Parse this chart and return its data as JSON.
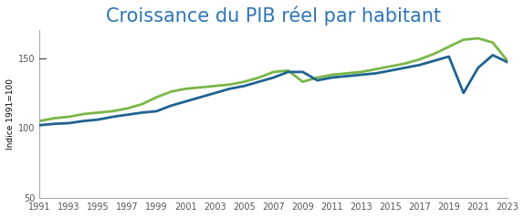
{
  "title": "Croissance du PIB réel par habitant",
  "ylabel": "Indice 1991=100",
  "xlim": [
    1991,
    2023
  ],
  "ylim": [
    50,
    170
  ],
  "yticks": [
    50,
    100,
    150
  ],
  "xticks": [
    1991,
    1993,
    1995,
    1997,
    1999,
    2001,
    2003,
    2005,
    2007,
    2009,
    2011,
    2013,
    2015,
    2017,
    2019,
    2021,
    2023
  ],
  "title_color": "#2e75b6",
  "title_fontsize": 15,
  "color_blue": "#1f6391",
  "color_green": "#7ab648",
  "blue_data": {
    "years": [
      1991,
      1992,
      1993,
      1994,
      1995,
      1996,
      1997,
      1998,
      1999,
      2000,
      2001,
      2002,
      2003,
      2004,
      2005,
      2006,
      2007,
      2008,
      2009,
      2010,
      2011,
      2012,
      2013,
      2014,
      2015,
      2016,
      2017,
      2018,
      2019,
      2020,
      2021,
      2022,
      2023
    ],
    "values": [
      102,
      103,
      103.5,
      105,
      106,
      108,
      109.5,
      111,
      112,
      116,
      119,
      122,
      125,
      128,
      130,
      133,
      136,
      140,
      140,
      134,
      136,
      137,
      138,
      139,
      141,
      143,
      145,
      148,
      151,
      125,
      143,
      152,
      147
    ]
  },
  "green_data": {
    "years": [
      1991,
      1992,
      1993,
      1994,
      1995,
      1996,
      1997,
      1998,
      1999,
      2000,
      2001,
      2002,
      2003,
      2004,
      2005,
      2006,
      2007,
      2008,
      2009,
      2010,
      2011,
      2012,
      2013,
      2014,
      2015,
      2016,
      2017,
      2018,
      2019,
      2020,
      2021,
      2022,
      2023
    ],
    "values": [
      105,
      107,
      108,
      110,
      111,
      112,
      114,
      117,
      122,
      126,
      128,
      129,
      130,
      131,
      133,
      136,
      140,
      141,
      133,
      136,
      138,
      139,
      140,
      142,
      144,
      146,
      149,
      153,
      158,
      163,
      164,
      161,
      148
    ]
  },
  "background_color": "#ffffff",
  "line_width": 2.0
}
